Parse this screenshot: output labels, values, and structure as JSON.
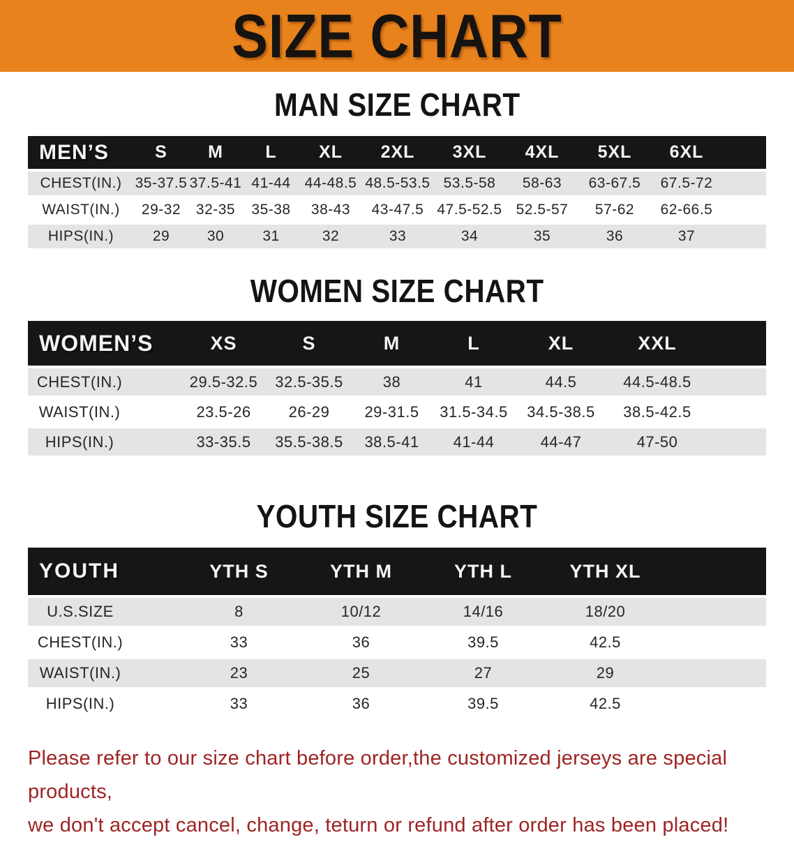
{
  "banner": {
    "title": "SIZE CHART"
  },
  "colors": {
    "banner_bg": "#E8821C",
    "banner_text": "#161310",
    "table_header_bg": "#161616",
    "alt_row_bg": "#E4E4E4",
    "footer_text": "#9E2424"
  },
  "sections": {
    "men": {
      "heading": "MAN SIZE CHART"
    },
    "women": {
      "heading": "WOMEN SIZE CHART"
    },
    "youth": {
      "heading": "YOUTH SIZE CHART"
    }
  },
  "footer": {
    "line1": "Please refer to our size chart before order,the customized jerseys are special products,",
    "line2": "we don't accept cancel, change, teturn or refund after order has been placed!"
  },
  "chart_data": [
    {
      "type": "table",
      "title": "MAN SIZE CHART",
      "columns": [
        "MEN’S",
        "S",
        "M",
        "L",
        "XL",
        "2XL",
        "3XL",
        "4XL",
        "5XL",
        "6XL"
      ],
      "rows": [
        [
          "CHEST(IN.)",
          "35-37.5",
          "37.5-41",
          "41-44",
          "44-48.5",
          "48.5-53.5",
          "53.5-58",
          "58-63",
          "63-67.5",
          "67.5-72"
        ],
        [
          "WAIST(IN.)",
          "29-32",
          "32-35",
          "35-38",
          "38-43",
          "43-47.5",
          "47.5-52.5",
          "52.5-57",
          "57-62",
          "62-66.5"
        ],
        [
          "HIPS(IN.)",
          "29",
          "30",
          "31",
          "32",
          "33",
          "34",
          "35",
          "36",
          "37"
        ]
      ]
    },
    {
      "type": "table",
      "title": "WOMEN SIZE CHART",
      "columns": [
        "WOMEN’S",
        "XS",
        "S",
        "M",
        "L",
        "XL",
        "XXL"
      ],
      "rows": [
        [
          "CHEST(IN.)",
          "29.5-32.5",
          "32.5-35.5",
          "38",
          "41",
          "44.5",
          "44.5-48.5"
        ],
        [
          "WAIST(IN.)",
          "23.5-26",
          "26-29",
          "29-31.5",
          "31.5-34.5",
          "34.5-38.5",
          "38.5-42.5"
        ],
        [
          "HIPS(IN.)",
          "33-35.5",
          "35.5-38.5",
          "38.5-41",
          "41-44",
          "44-47",
          "47-50"
        ]
      ]
    },
    {
      "type": "table",
      "title": "YOUTH SIZE CHART",
      "columns": [
        "YOUTH",
        "YTH S",
        "YTH M",
        "YTH L",
        "YTH XL"
      ],
      "rows": [
        [
          "U.S.SIZE",
          "8",
          "10/12",
          "14/16",
          "18/20"
        ],
        [
          "CHEST(IN.)",
          "33",
          "36",
          "39.5",
          "42.5"
        ],
        [
          "WAIST(IN.)",
          "23",
          "25",
          "27",
          "29"
        ],
        [
          "HIPS(IN.)",
          "33",
          "36",
          "39.5",
          "42.5"
        ]
      ]
    }
  ]
}
